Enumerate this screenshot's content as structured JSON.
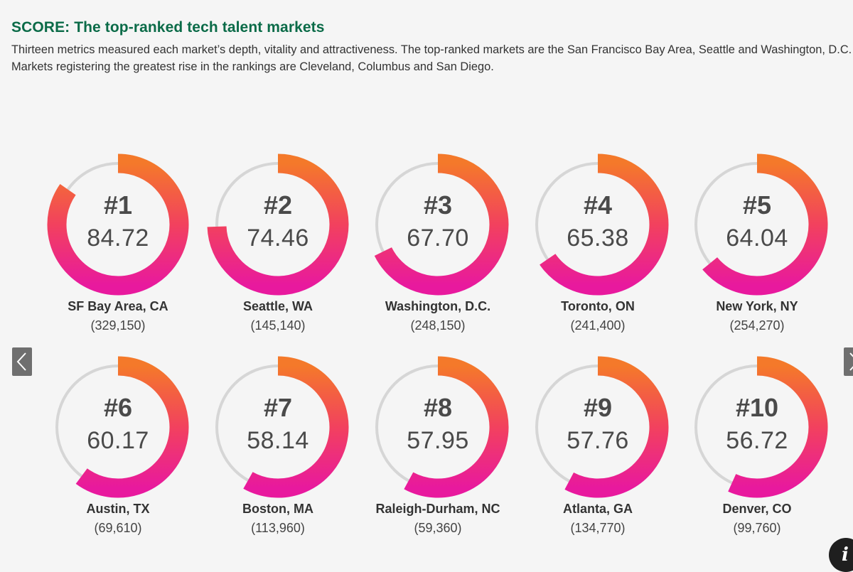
{
  "header": {
    "title": "SCORE: The top-ranked tech talent markets",
    "subtitle_line1": "Thirteen metrics measured each market’s depth, vitality and attractiveness. The top-ranked markets are the San Francisco Bay Area, Seattle and Washington, D.C.",
    "subtitle_line2": "Markets registering the greatest rise in the rankings are Cleveland, Columbus and San Diego."
  },
  "colors": {
    "title": "#0b6b48",
    "ring_track": "#d6d6d6",
    "gradient_start": "#f4792a",
    "gradient_mid": "#f2415e",
    "gradient_end": "#e8199e"
  },
  "controls": {
    "prev_icon": "chevron-left-icon",
    "next_icon": "chevron-right-icon",
    "info_icon": "info-icon",
    "info_glyph": "i"
  },
  "chart_data": {
    "type": "donut",
    "scale_max": 100,
    "items": [
      {
        "rank": "#1",
        "score": "84.72",
        "value": 84.72,
        "city": "SF Bay Area, CA",
        "count": "(329,150)"
      },
      {
        "rank": "#2",
        "score": "74.46",
        "value": 74.46,
        "city": "Seattle, WA",
        "count": "(145,140)"
      },
      {
        "rank": "#3",
        "score": "67.70",
        "value": 67.7,
        "city": "Washington, D.C.",
        "count": "(248,150)"
      },
      {
        "rank": "#4",
        "score": "65.38",
        "value": 65.38,
        "city": "Toronto, ON",
        "count": "(241,400)"
      },
      {
        "rank": "#5",
        "score": "64.04",
        "value": 64.04,
        "city": "New York, NY",
        "count": "(254,270)"
      },
      {
        "rank": "#6",
        "score": "60.17",
        "value": 60.17,
        "city": "Austin, TX",
        "count": "(69,610)"
      },
      {
        "rank": "#7",
        "score": "58.14",
        "value": 58.14,
        "city": "Boston, MA",
        "count": "(113,960)"
      },
      {
        "rank": "#8",
        "score": "57.95",
        "value": 57.95,
        "city": "Raleigh-Durham, NC",
        "count": "(59,360)"
      },
      {
        "rank": "#9",
        "score": "57.76",
        "value": 57.76,
        "city": "Atlanta, GA",
        "count": "(134,770)"
      },
      {
        "rank": "#10",
        "score": "56.72",
        "value": 56.72,
        "city": "Denver, CO",
        "count": "(99,760)"
      }
    ]
  }
}
